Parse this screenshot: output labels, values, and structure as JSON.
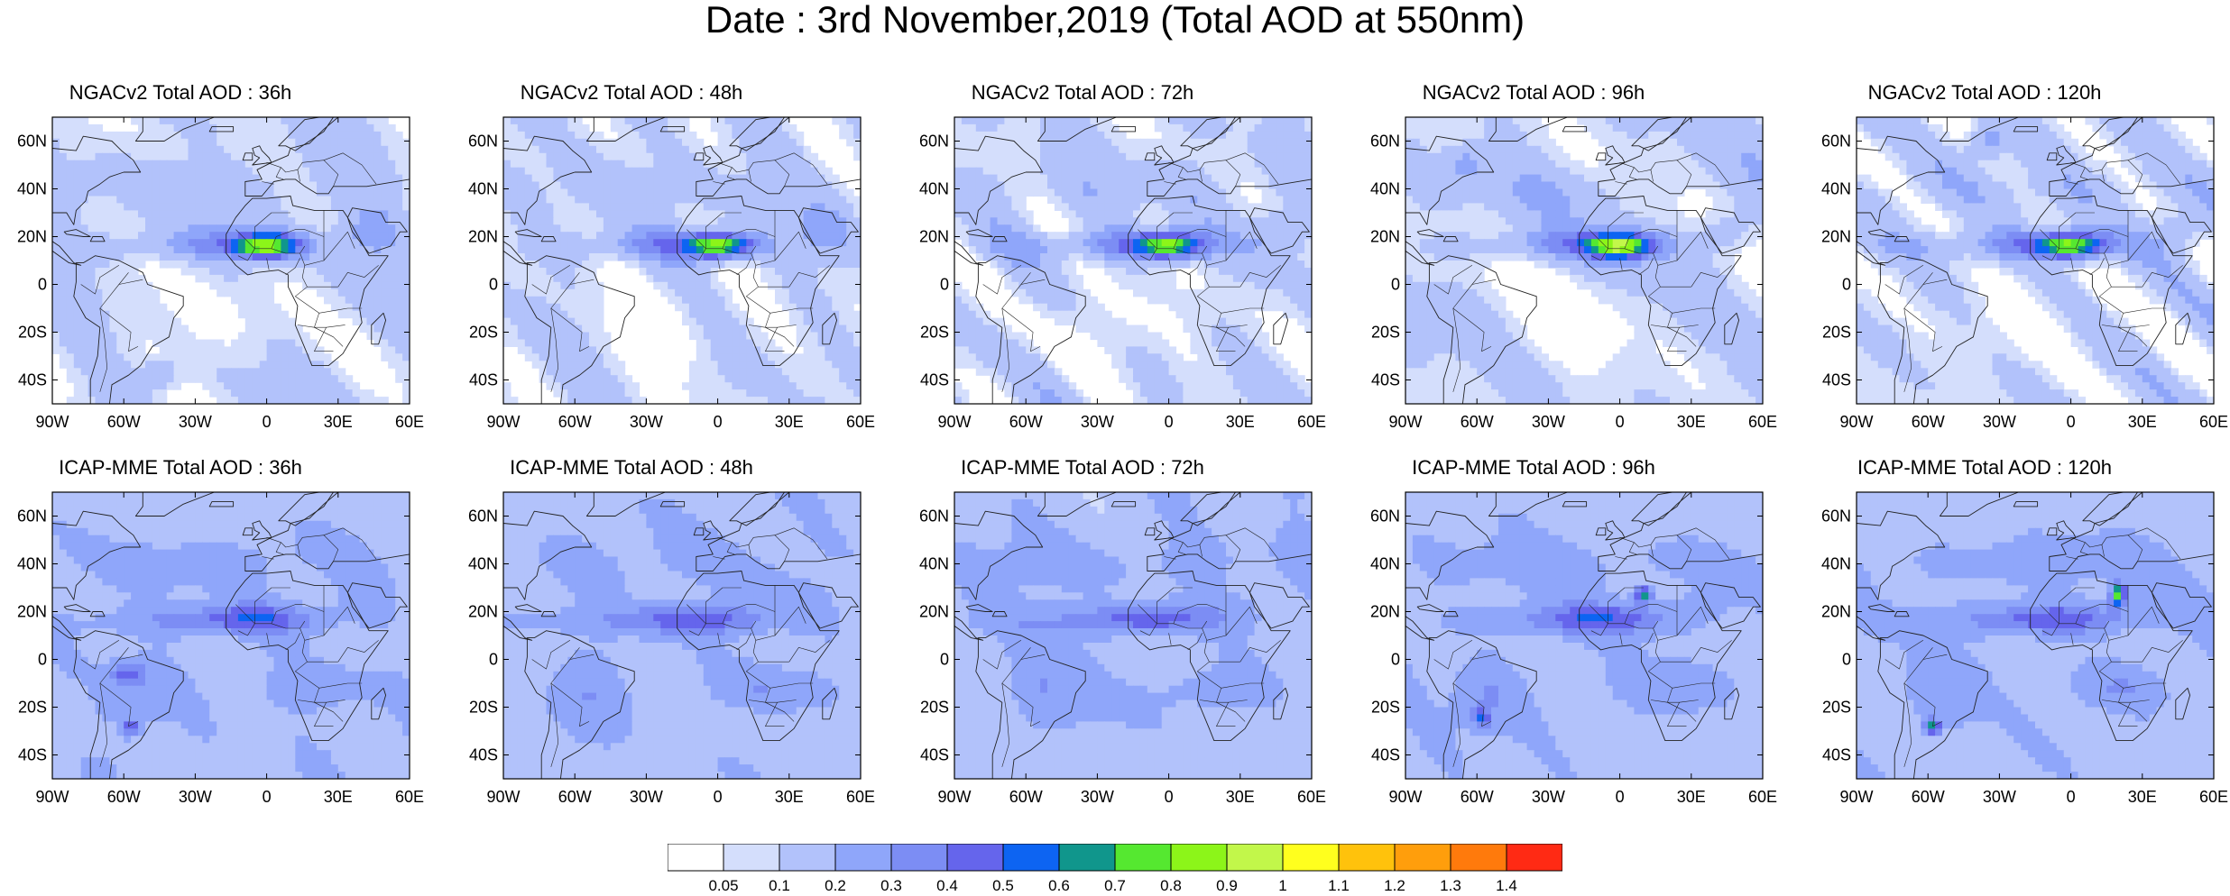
{
  "title": "Date : 3rd November,2019 (Total AOD at 550nm)",
  "panels": [
    {
      "title": "NGACv2 Total AOD : 36h",
      "row": 0,
      "col": 0,
      "pattern": "ngac36"
    },
    {
      "title": "NGACv2 Total AOD : 48h",
      "row": 0,
      "col": 1,
      "pattern": "ngac48"
    },
    {
      "title": "NGACv2 Total AOD : 72h",
      "row": 0,
      "col": 2,
      "pattern": "ngac72"
    },
    {
      "title": "NGACv2 Total AOD : 96h",
      "row": 0,
      "col": 3,
      "pattern": "ngac96"
    },
    {
      "title": "NGACv2 Total AOD : 120h",
      "row": 0,
      "col": 4,
      "pattern": "ngac120"
    },
    {
      "title": "ICAP-MME Total AOD : 36h",
      "row": 1,
      "col": 0,
      "pattern": "icap36"
    },
    {
      "title": "ICAP-MME Total AOD : 48h",
      "row": 1,
      "col": 1,
      "pattern": "icap48"
    },
    {
      "title": "ICAP-MME Total AOD : 72h",
      "row": 1,
      "col": 2,
      "pattern": "icap72"
    },
    {
      "title": "ICAP-MME Total AOD : 96h",
      "row": 1,
      "col": 3,
      "pattern": "icap96"
    },
    {
      "title": "ICAP-MME Total AOD : 120h",
      "row": 1,
      "col": 4,
      "pattern": "icap120"
    }
  ],
  "axes": {
    "lon_ticks": [
      "90W",
      "60W",
      "30W",
      "0",
      "30E",
      "60E"
    ],
    "lat_ticks": [
      "60N",
      "40N",
      "20N",
      "0",
      "20S",
      "40S"
    ],
    "lon_range": [
      -90,
      60
    ],
    "lat_range": [
      -50,
      70
    ]
  },
  "colorbar": {
    "labels": [
      "0.05",
      "0.1",
      "0.2",
      "0.3",
      "0.4",
      "0.5",
      "0.6",
      "0.7",
      "0.8",
      "0.9",
      "1",
      "1.1",
      "1.2",
      "1.3",
      "1.4"
    ],
    "colors": [
      "#ffffff",
      "#d4defc",
      "#b2c2fb",
      "#8fa6fa",
      "#7c8df4",
      "#6565ec",
      "#0d64f2",
      "#10968c",
      "#55e830",
      "#8cf519",
      "#c2f74a",
      "#ffff1e",
      "#ffc20c",
      "#ff9e0c",
      "#ff7a0c",
      "#ff2a14"
    ]
  }
}
